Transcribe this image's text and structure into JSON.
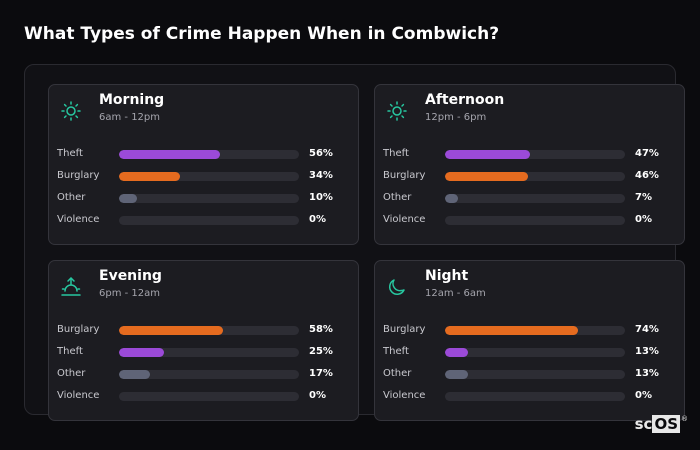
{
  "title": "What Types of Crime Happen When in Combwich?",
  "colors": {
    "Theft": "#9b4ad8",
    "Burglary": "#e56b1f",
    "Other": "#5f6477",
    "Violence": "#3a3a44",
    "icon": "#27c7a0"
  },
  "cards": [
    {
      "name": "Morning",
      "time": "6am - 12pm",
      "icon": "sun-icon",
      "rows": [
        {
          "label": "Theft",
          "pct": "56%",
          "value": 56
        },
        {
          "label": "Burglary",
          "pct": "34%",
          "value": 34
        },
        {
          "label": "Other",
          "pct": "10%",
          "value": 10
        },
        {
          "label": "Violence",
          "pct": "0%",
          "value": 0
        }
      ]
    },
    {
      "name": "Afternoon",
      "time": "12pm - 6pm",
      "icon": "sun-icon",
      "rows": [
        {
          "label": "Theft",
          "pct": "47%",
          "value": 47
        },
        {
          "label": "Burglary",
          "pct": "46%",
          "value": 46
        },
        {
          "label": "Other",
          "pct": "7%",
          "value": 7
        },
        {
          "label": "Violence",
          "pct": "0%",
          "value": 0
        }
      ]
    },
    {
      "name": "Evening",
      "time": "6pm - 12am",
      "icon": "sunset-icon",
      "rows": [
        {
          "label": "Burglary",
          "pct": "58%",
          "value": 58
        },
        {
          "label": "Theft",
          "pct": "25%",
          "value": 25
        },
        {
          "label": "Other",
          "pct": "17%",
          "value": 17
        },
        {
          "label": "Violence",
          "pct": "0%",
          "value": 0
        }
      ]
    },
    {
      "name": "Night",
      "time": "12am - 6am",
      "icon": "moon-icon",
      "rows": [
        {
          "label": "Burglary",
          "pct": "74%",
          "value": 74
        },
        {
          "label": "Theft",
          "pct": "13%",
          "value": 13
        },
        {
          "label": "Other",
          "pct": "13%",
          "value": 13
        },
        {
          "label": "Violence",
          "pct": "0%",
          "value": 0
        }
      ]
    }
  ],
  "logo": {
    "sc": "sc",
    "os": "OS",
    "reg": "®"
  }
}
